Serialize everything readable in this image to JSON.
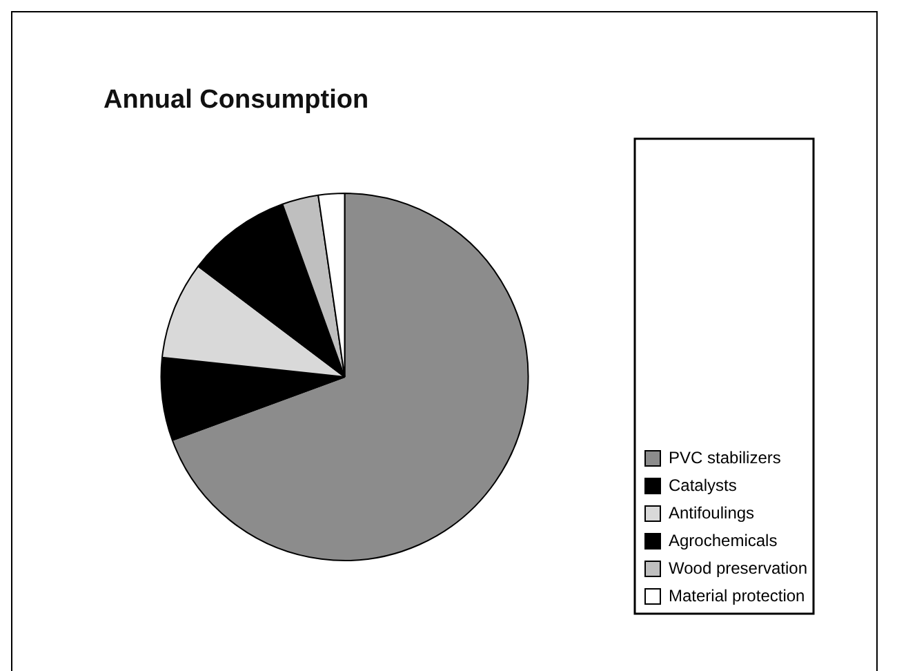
{
  "chart_data": {
    "type": "pie",
    "title": "Annual Consumption",
    "categories": [
      "PVC stabilizers",
      "Catalysts",
      "Antifoulings",
      "Agrochemicals",
      "Wood preservation",
      "Material protection"
    ],
    "values": [
      69.4,
      7.3,
      8.6,
      9.2,
      3.2,
      2.3
    ],
    "colors": [
      "#8c8c8c",
      "#000000",
      "#d9d9d9",
      "#000000",
      "#bfbfbf",
      "#ffffff"
    ],
    "legend": "bottom right"
  }
}
